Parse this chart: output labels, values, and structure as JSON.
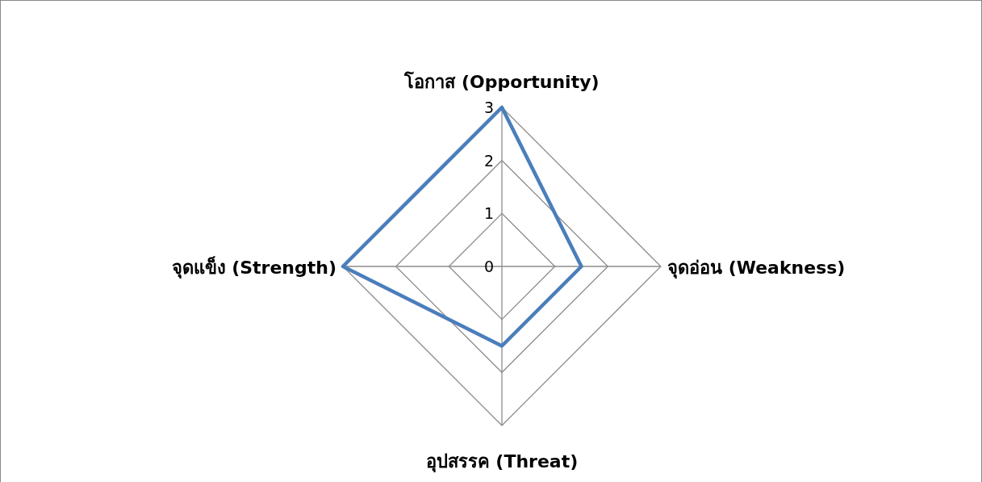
{
  "chart_data": {
    "type": "radar",
    "categories": [
      "โอกาส (Opportunity)",
      "จุดอ่อน (Weakness)",
      "อุปสรรค (Threat)",
      "จุดแข็ง (Strength)"
    ],
    "series": [
      {
        "color": "#4a7ebb",
        "values": [
          3,
          1.5,
          1.5,
          3
        ]
      }
    ],
    "ylim": [
      0,
      3
    ],
    "yticks": [
      0,
      1,
      2,
      3
    ],
    "grid": true
  }
}
